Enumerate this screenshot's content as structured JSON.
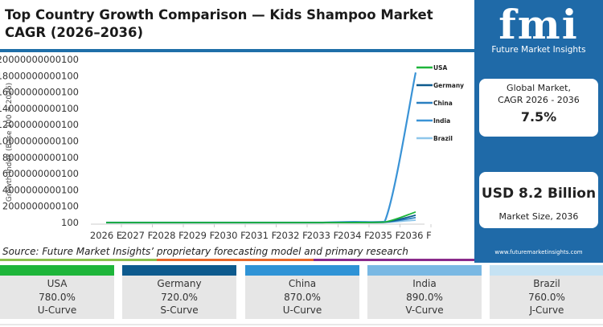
{
  "title": "Top Country Growth Comparison — Kids Shampoo Market CAGR (2026–2036)",
  "chart_data": {
    "type": "line",
    "title": "Top Country Growth Comparison — Kids Shampoo Market CAGR (2026–2036)",
    "xlabel": "",
    "ylabel": "Growth Index (Base 100 = 2026)",
    "categories": [
      "2026 E",
      "2027 F",
      "2028 F",
      "2029 F",
      "2030 F",
      "2031 F",
      "2032 F",
      "2033 F",
      "2034 F",
      "2035 F",
      "2036 F"
    ],
    "yticks": [
      "100",
      "2000000000100",
      "4000000000100",
      "6000000000100",
      "8000000000100",
      "10000000000100",
      "12000000000100",
      "14000000000100",
      "16000000000100",
      "18000000000100",
      "20000000000100"
    ],
    "ylim": [
      100,
      20000000000100
    ],
    "grid": false,
    "legend": "right",
    "series": [
      {
        "name": "USA",
        "color": "#1eb53a",
        "values": [
          100,
          150,
          300,
          800,
          2500,
          9000,
          40000,
          300000,
          3000000000,
          60000000000,
          1300000000000
        ]
      },
      {
        "name": "Germany",
        "color": "#0d5a8e",
        "values": [
          100,
          140,
          280,
          700,
          2200,
          8000,
          35000,
          250000,
          2500000000,
          45000000000,
          900000000000
        ]
      },
      {
        "name": "China",
        "color": "#2a7fc0",
        "values": [
          100,
          160,
          320,
          900,
          2800,
          10000,
          45000,
          350000,
          3500000000,
          35000000000,
          600000000000
        ]
      },
      {
        "name": "India",
        "color": "#3a93d6",
        "values": [
          100,
          170,
          350,
          1000,
          3000,
          12000,
          50000,
          400000,
          90000000000,
          110000000000,
          18400000000000
        ]
      },
      {
        "name": "Brazil",
        "color": "#8ec6ea",
        "values": [
          100,
          145,
          290,
          750,
          2400,
          8500,
          38000,
          280000,
          2800000000,
          20000000000,
          300000000000
        ]
      }
    ]
  },
  "source": "Source: Future Market Insights’ proprietary forecasting model and primary research",
  "sidebar": {
    "logo_text": "fmi",
    "logo_sub": "Future Market Insights",
    "cagr_label_1": "Global Market,",
    "cagr_label_2": "CAGR 2026 - 2036",
    "cagr_value": "7.5%",
    "size_value": "USD 8.2 Billion",
    "size_label": "Market Size, 2036",
    "url": "www.futuremarketinsights.com"
  },
  "cards": [
    {
      "country": "USA",
      "growth": "780.0%",
      "curve": "U-Curve",
      "color": "#1eb53a"
    },
    {
      "country": "Germany",
      "growth": "720.0%",
      "curve": "S-Curve",
      "color": "#0d5a8e"
    },
    {
      "country": "China",
      "growth": "870.0%",
      "curve": "U-Curve",
      "color": "#2f93d6"
    },
    {
      "country": "India",
      "growth": "890.0%",
      "curve": "V-Curve",
      "color": "#79b8e3"
    },
    {
      "country": "Brazil",
      "growth": "760.0%",
      "curve": "J-Curve",
      "color": "#c5e2f3"
    }
  ]
}
